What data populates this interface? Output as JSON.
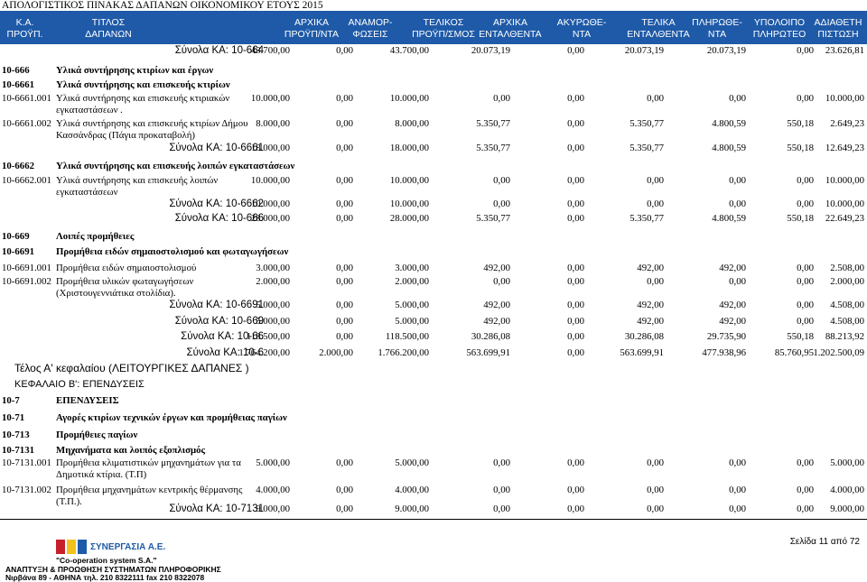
{
  "doc_title": "ΑΠΟΛΟΓΙΣΤΙΚΟΣ ΠΙΝΑΚΑΣ ΔΑΠΑΝΩΝ ΟΙΚΟΝΟΜΙΚΟΥ ΕΤΟΥΣ 2015",
  "headers": [
    {
      "key": "ka",
      "label": "Κ.Α.\nΠΡΟΫΠ."
    },
    {
      "key": "title",
      "label": "ΤΙΤΛΟΣ\nΔΑΠΑΝΩΝ"
    },
    {
      "key": "initial",
      "label": "ΑΡΧΙΚΑ\nΠΡΟΫΠ/ΝΤΑ"
    },
    {
      "key": "reallocations",
      "label": "ΑΝΑΜΟΡ-\nΦΩΣΕΙΣ"
    },
    {
      "key": "final",
      "label": "ΤΕΛΙΚΟΣ\nΠΡΟΫΠ/ΣΜΟΣ"
    },
    {
      "key": "initial_commit",
      "label": "ΑΡΧΙΚΑ\nΕΝΤΑΛΘΕΝΤΑ"
    },
    {
      "key": "cancelled",
      "label": "ΑΚΥΡΩΘΕ-\nΝΤΑ"
    },
    {
      "key": "final_commit",
      "label": "ΤΕΛΙΚΑ\nΕΝΤΑΛΘΕΝΤΑ"
    },
    {
      "key": "paid",
      "label": "ΠΛΗΡΩΘΕ-\nΝΤΑ"
    },
    {
      "key": "remaining",
      "label": "ΥΠΟΛΟΙΠΟ\nΠΛΗΡΩΤΕΟ"
    },
    {
      "key": "available",
      "label": "ΑΔΙΑΘΕΤΗ\nΠΙΣΤΩΣΗ"
    }
  ],
  "rows": [
    {
      "type": "total",
      "label": "Σύνολα ΚΑ: 10-664",
      "values": [
        "43.700,00",
        "0,00",
        "43.700,00",
        "20.073,19",
        "0,00",
        "20.073,19",
        "20.073,19",
        "0,00",
        "23.626,81"
      ]
    },
    {
      "type": "group",
      "code": "10-666",
      "desc": "Υλικά συντήρησης κτιρίων και έργων"
    },
    {
      "type": "group",
      "code": "10-6661",
      "desc": "Υλικά συντήρησης και επισκευής κτιρίων"
    },
    {
      "type": "item",
      "code": "10-6661.001",
      "desc": "Υλικά συντήρησης και επισκευής κτιριακών",
      "desc2": "εγκαταστάσεων .",
      "values": [
        "10.000,00",
        "0,00",
        "10.000,00",
        "0,00",
        "0,00",
        "0,00",
        "0,00",
        "0,00",
        "10.000,00"
      ]
    },
    {
      "type": "item",
      "code": "10-6661.002",
      "desc": "Υλικά συντήρησης και επισκευής κτιρίων Δήμου",
      "desc2": "Κασσάνδρας (Πάγια προκαταβολή)",
      "values": [
        "8.000,00",
        "0,00",
        "8.000,00",
        "5.350,77",
        "0,00",
        "5.350,77",
        "4.800,59",
        "550,18",
        "2.649,23"
      ]
    },
    {
      "type": "total",
      "label": "Σύνολα ΚΑ: 10-6661",
      "values": [
        "18.000,00",
        "0,00",
        "18.000,00",
        "5.350,77",
        "0,00",
        "5.350,77",
        "4.800,59",
        "550,18",
        "12.649,23"
      ]
    },
    {
      "type": "group",
      "code": "10-6662",
      "desc": "Υλικά συντήρησης και επισκευής λοιπών εγκαταστάσεων"
    },
    {
      "type": "item",
      "code": "10-6662.001",
      "desc": "Υλικά συντήρησης και επισκευής λοιπών",
      "desc2": "εγκαταστάσεων",
      "values": [
        "10.000,00",
        "0,00",
        "10.000,00",
        "0,00",
        "0,00",
        "0,00",
        "0,00",
        "0,00",
        "10.000,00"
      ]
    },
    {
      "type": "total",
      "label": "Σύνολα ΚΑ: 10-6662",
      "values": [
        "10.000,00",
        "0,00",
        "10.000,00",
        "0,00",
        "0,00",
        "0,00",
        "0,00",
        "0,00",
        "10.000,00"
      ]
    },
    {
      "type": "total",
      "label": "Σύνολα ΚΑ: 10-666",
      "values": [
        "28.000,00",
        "0,00",
        "28.000,00",
        "5.350,77",
        "0,00",
        "5.350,77",
        "4.800,59",
        "550,18",
        "22.649,23"
      ]
    },
    {
      "type": "group",
      "code": "10-669",
      "desc": "Λοιπές προμήθειες"
    },
    {
      "type": "group",
      "code": "10-6691",
      "desc": "Προμήθεια ειδών σημαιοστολισμού και φωταγωγήσεων"
    },
    {
      "type": "item",
      "code": "10-6691.001",
      "desc": "Προμήθεια ειδών σημαιοστολισμού",
      "values": [
        "3.000,00",
        "0,00",
        "3.000,00",
        "492,00",
        "0,00",
        "492,00",
        "492,00",
        "0,00",
        "2.508,00"
      ]
    },
    {
      "type": "item",
      "code": "10-6691.002",
      "desc": "Προμήθεια υλικών φωταγωγήσεων",
      "desc2": "(Χριστουγεννιάτικα στολίδια).",
      "values": [
        "2.000,00",
        "0,00",
        "2.000,00",
        "0,00",
        "0,00",
        "0,00",
        "0,00",
        "0,00",
        "2.000,00"
      ]
    },
    {
      "type": "total",
      "label": "Σύνολα ΚΑ: 10-6691",
      "values": [
        "5.000,00",
        "0,00",
        "5.000,00",
        "492,00",
        "0,00",
        "492,00",
        "492,00",
        "0,00",
        "4.508,00"
      ]
    },
    {
      "type": "total",
      "label": "Σύνολα ΚΑ: 10-669",
      "values": [
        "5.000,00",
        "0,00",
        "5.000,00",
        "492,00",
        "0,00",
        "492,00",
        "492,00",
        "0,00",
        "4.508,00"
      ]
    },
    {
      "type": "total",
      "label": "Σύνολα ΚΑ: 10-66",
      "values": [
        "118.500,00",
        "0,00",
        "118.500,00",
        "30.286,08",
        "0,00",
        "30.286,08",
        "29.735,90",
        "550,18",
        "88.213,92"
      ]
    },
    {
      "type": "total",
      "label": "Σύνολα ΚΑ: 10-6",
      "values": [
        "1.764.200,00",
        "2.000,00",
        "1.766.200,00",
        "563.699,91",
        "0,00",
        "563.699,91",
        "477.938,96",
        "85.760,95",
        "1.202.500,09"
      ]
    },
    {
      "type": "chapter",
      "desc": "Τέλος Α' κεφαλαίου (ΛΕΙΤΟΥΡΓΙΚΕΣ ΔΑΠΑΝΕΣ )"
    },
    {
      "type": "chapter2",
      "desc": "ΚΕΦΑΛΑΙΟ Β': ΕΠΕΝΔΥΣΕΙΣ"
    },
    {
      "type": "group",
      "code": "10-7",
      "desc": "ΕΠΕΝΔΥΣΕΙΣ"
    },
    {
      "type": "group",
      "code": "10-71",
      "desc": "Αγορές κτιρίων τεχνικών έργων και προμήθειας παγίων"
    },
    {
      "type": "group",
      "code": "10-713",
      "desc": "Προμήθειες παγίων"
    },
    {
      "type": "group",
      "code": "10-7131",
      "desc": "Μηχανήματα και λοιπός εξοπλισμός"
    },
    {
      "type": "item",
      "code": "10-7131.001",
      "desc": "Προμήθεια κλιματιστικών μηχανημάτων για τα",
      "desc2": "Δημοτικά κτίρια. (Τ.Π)",
      "values": [
        "5.000,00",
        "0,00",
        "5.000,00",
        "0,00",
        "0,00",
        "0,00",
        "0,00",
        "0,00",
        "5.000,00"
      ]
    },
    {
      "type": "item",
      "code": "10-7131.002",
      "desc": "Προμήθεια μηχανημάτων κεντρικής θέρμανσης",
      "desc2": "(Τ.Π.).",
      "values": [
        "4.000,00",
        "0,00",
        "4.000,00",
        "0,00",
        "0,00",
        "0,00",
        "0,00",
        "0,00",
        "4.000,00"
      ]
    },
    {
      "type": "total",
      "label": "Σύνολα ΚΑ: 10-7131",
      "values": [
        "9.000,00",
        "0,00",
        "9.000,00",
        "0,00",
        "0,00",
        "0,00",
        "0,00",
        "0,00",
        "9.000,00"
      ]
    }
  ],
  "page_label": "Σελίδα 11 από 72",
  "footer": {
    "company": "ΣΥΝΕΡΓΑΣΙΑ Α.Ε.",
    "company_en": "\"Co-operation system S.A.\"",
    "tagline": "ΑΝΑΠΤΥΞΗ & ΠΡΟΩΘΗΣΗ ΣΥΣΤΗΜΑΤΩΝ ΠΛΗΡΟΦΟΡΙΚΗΣ",
    "address": "Νιρβάνα 89 - ΑΘΗΝΑ τηλ. 210 8322111 fax 210 8322078"
  },
  "colors": {
    "header_bg": "#1f5aa8",
    "logo_red": "#c8202a",
    "logo_yellow": "#f2c21b",
    "logo_blue": "#1f5aa8"
  }
}
